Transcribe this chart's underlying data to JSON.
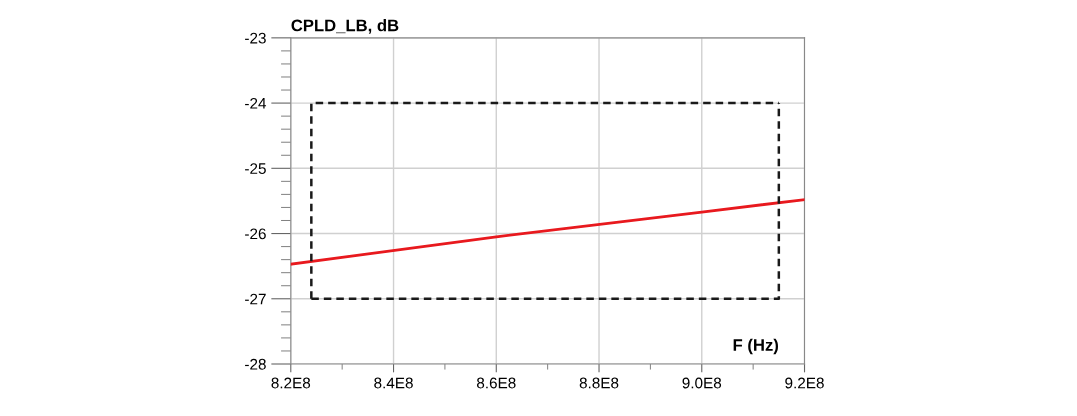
{
  "chart_data": {
    "type": "line",
    "title": "CPLD_LB, dB",
    "xlabel": "F (Hz)",
    "series": [
      {
        "color": "#e8191e",
        "line_style": "solid",
        "x": [
          820000000,
          860000000,
          900000000,
          920000000
        ],
        "values": [
          -26.47,
          -26.05,
          -25.67,
          -25.48
        ]
      },
      {
        "color": "#1a1a1a",
        "line_style": "dashed",
        "x": [
          824000000,
          824000000,
          915000000
        ],
        "values": [
          -27,
          -24,
          -24
        ]
      },
      {
        "color": "#1a1a1a",
        "line_style": "dashed",
        "x": [
          824000000,
          915000000,
          915000000
        ],
        "values": [
          -27,
          -27,
          -24
        ]
      }
    ],
    "xlim": [
      820000000,
      920000000
    ],
    "xticks": [
      {
        "value": 820000000,
        "label": "8.2E8"
      },
      {
        "value": 840000000,
        "label": "8.4E8"
      },
      {
        "value": 860000000,
        "label": "8.6E8"
      },
      {
        "value": 880000000,
        "label": "8.8E8"
      },
      {
        "value": 900000000,
        "label": "9.0E8"
      },
      {
        "value": 920000000,
        "label": "9.2E8"
      }
    ],
    "ylim": [
      -28,
      -23
    ],
    "yticks": [
      -28,
      -27,
      -26,
      -25,
      -24,
      -23
    ],
    "grid": true
  }
}
